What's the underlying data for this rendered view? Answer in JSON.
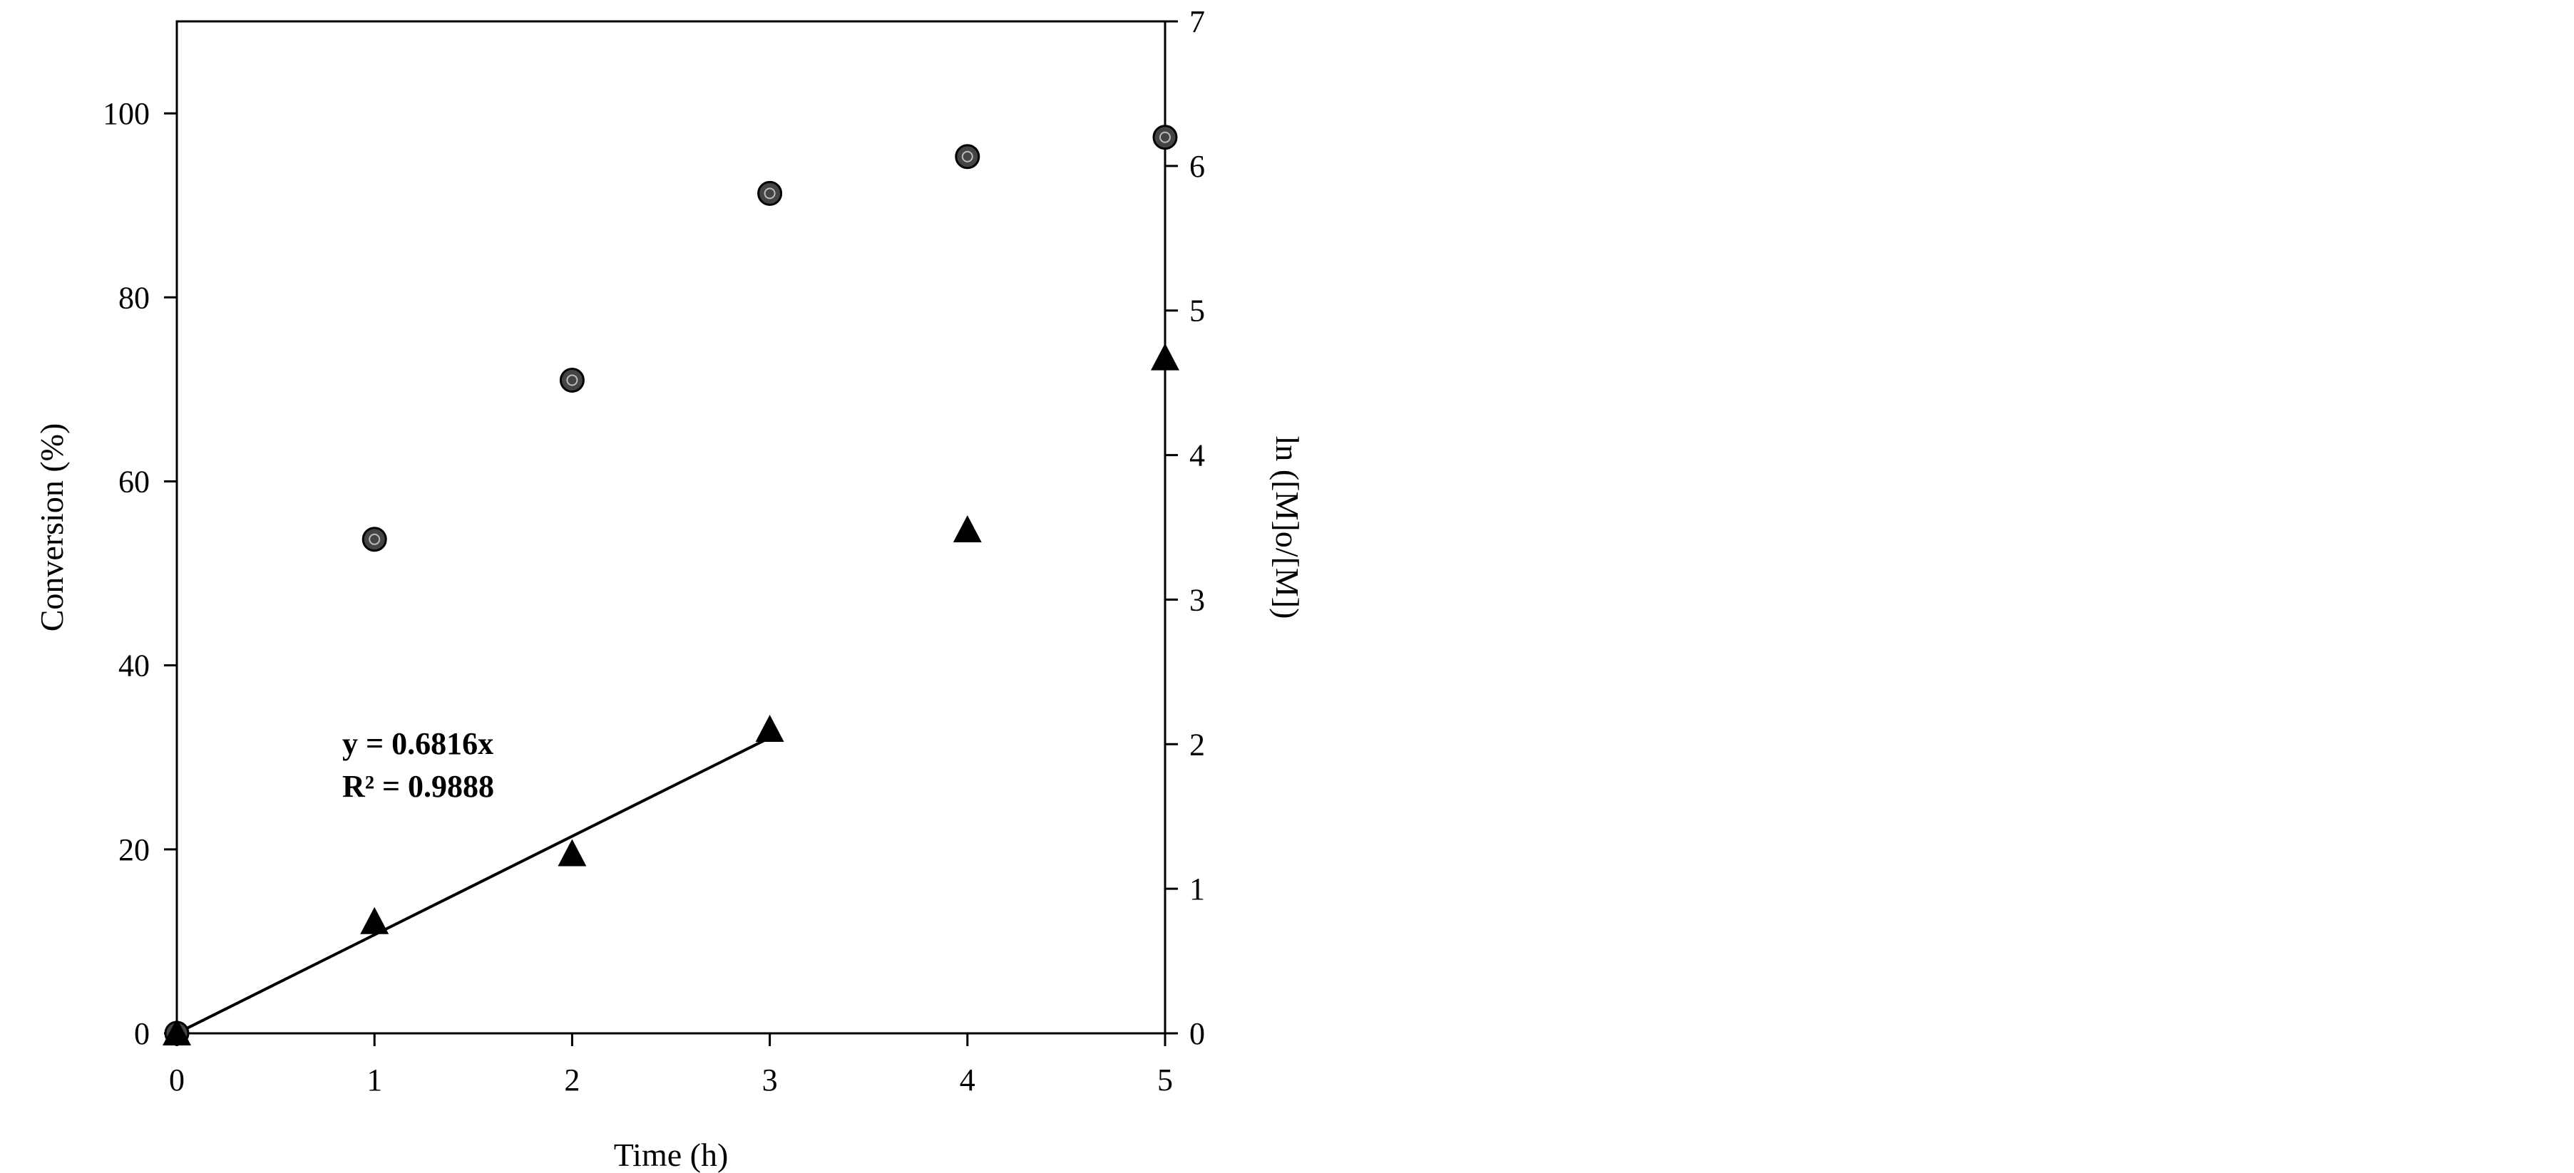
{
  "chart_data": {
    "type": "scatter",
    "title": "",
    "xlabel": "Time (h)",
    "ylabel_left": "Conversion (%)",
    "ylabel_right": "ln ([M]o/[M])",
    "xlim": [
      0,
      5
    ],
    "ylim_left": [
      0,
      110
    ],
    "ylim_right": [
      0,
      7
    ],
    "x_ticks": [
      "0",
      "1",
      "2",
      "3",
      "4",
      "5"
    ],
    "y_left_ticks": [
      "0",
      "20",
      "40",
      "60",
      "80",
      "100"
    ],
    "y_right_ticks": [
      "0",
      "1",
      "2",
      "3",
      "4",
      "5",
      "6",
      "7"
    ],
    "grid": false,
    "legend": "none",
    "series": [
      {
        "axis": "left",
        "marker": "circle",
        "x": [
          0,
          1,
          2,
          3,
          4,
          5
        ],
        "y": [
          0,
          53.7,
          71.0,
          91.3,
          95.3,
          97.4
        ]
      },
      {
        "axis": "right",
        "marker": "triangle",
        "x": [
          0,
          1,
          2,
          3,
          4,
          5
        ],
        "y": [
          0,
          0.77,
          1.24,
          2.1,
          3.48,
          4.67
        ]
      }
    ],
    "trendline": {
      "axis": "right",
      "x_range": [
        0,
        3
      ],
      "slope": 0.6816,
      "equation": "y = 0.6816x",
      "r2": "R² = 0.9888"
    },
    "colors": {
      "line": "#000000",
      "circle_fill": "#444444",
      "triangle_fill": "#000000",
      "background": "#ffffff"
    }
  }
}
